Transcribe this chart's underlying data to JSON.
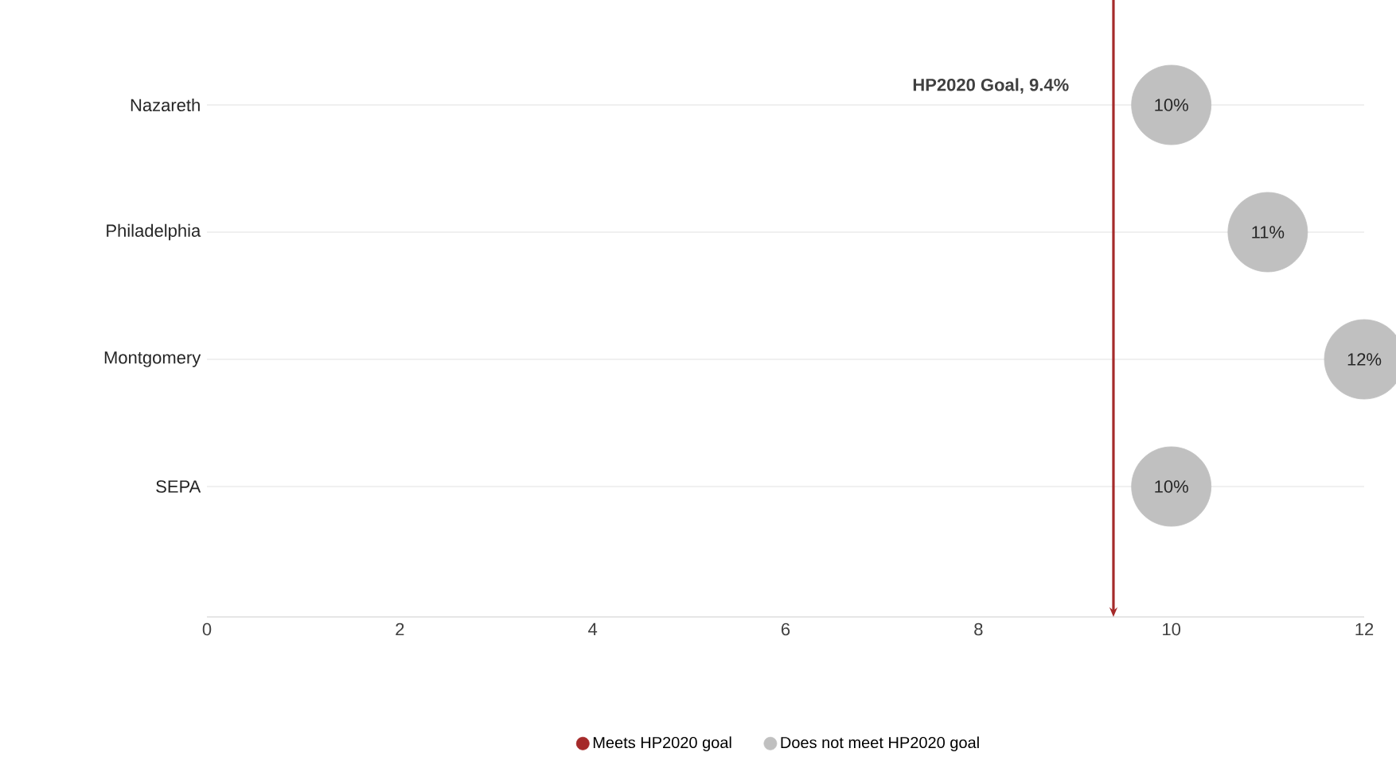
{
  "chart_data": {
    "type": "scatter",
    "orientation": "horizontal",
    "categories": [
      "Nazareth",
      "Philadelphia",
      "Montgomery",
      "SEPA"
    ],
    "series": [
      {
        "name": "Meets HP2020 goal",
        "color": "#a52a2a",
        "values": [
          null,
          null,
          null,
          null
        ]
      },
      {
        "name": "Does not meet HP2020 goal",
        "color": "#c0c0c0",
        "values": [
          10,
          11,
          12,
          10
        ],
        "value_labels": [
          "10%",
          "11%",
          "12%",
          "10%"
        ]
      }
    ],
    "xlim": [
      0,
      12
    ],
    "xticks": [
      0,
      2,
      4,
      6,
      8,
      10,
      12
    ],
    "ref_lines": [
      {
        "axis": "x",
        "value": 9.4,
        "label": "HP2020 Goal, 9.4%",
        "color": "#a52a2a"
      }
    ],
    "grid": "y",
    "legend": "bottom",
    "marker": "circle"
  }
}
